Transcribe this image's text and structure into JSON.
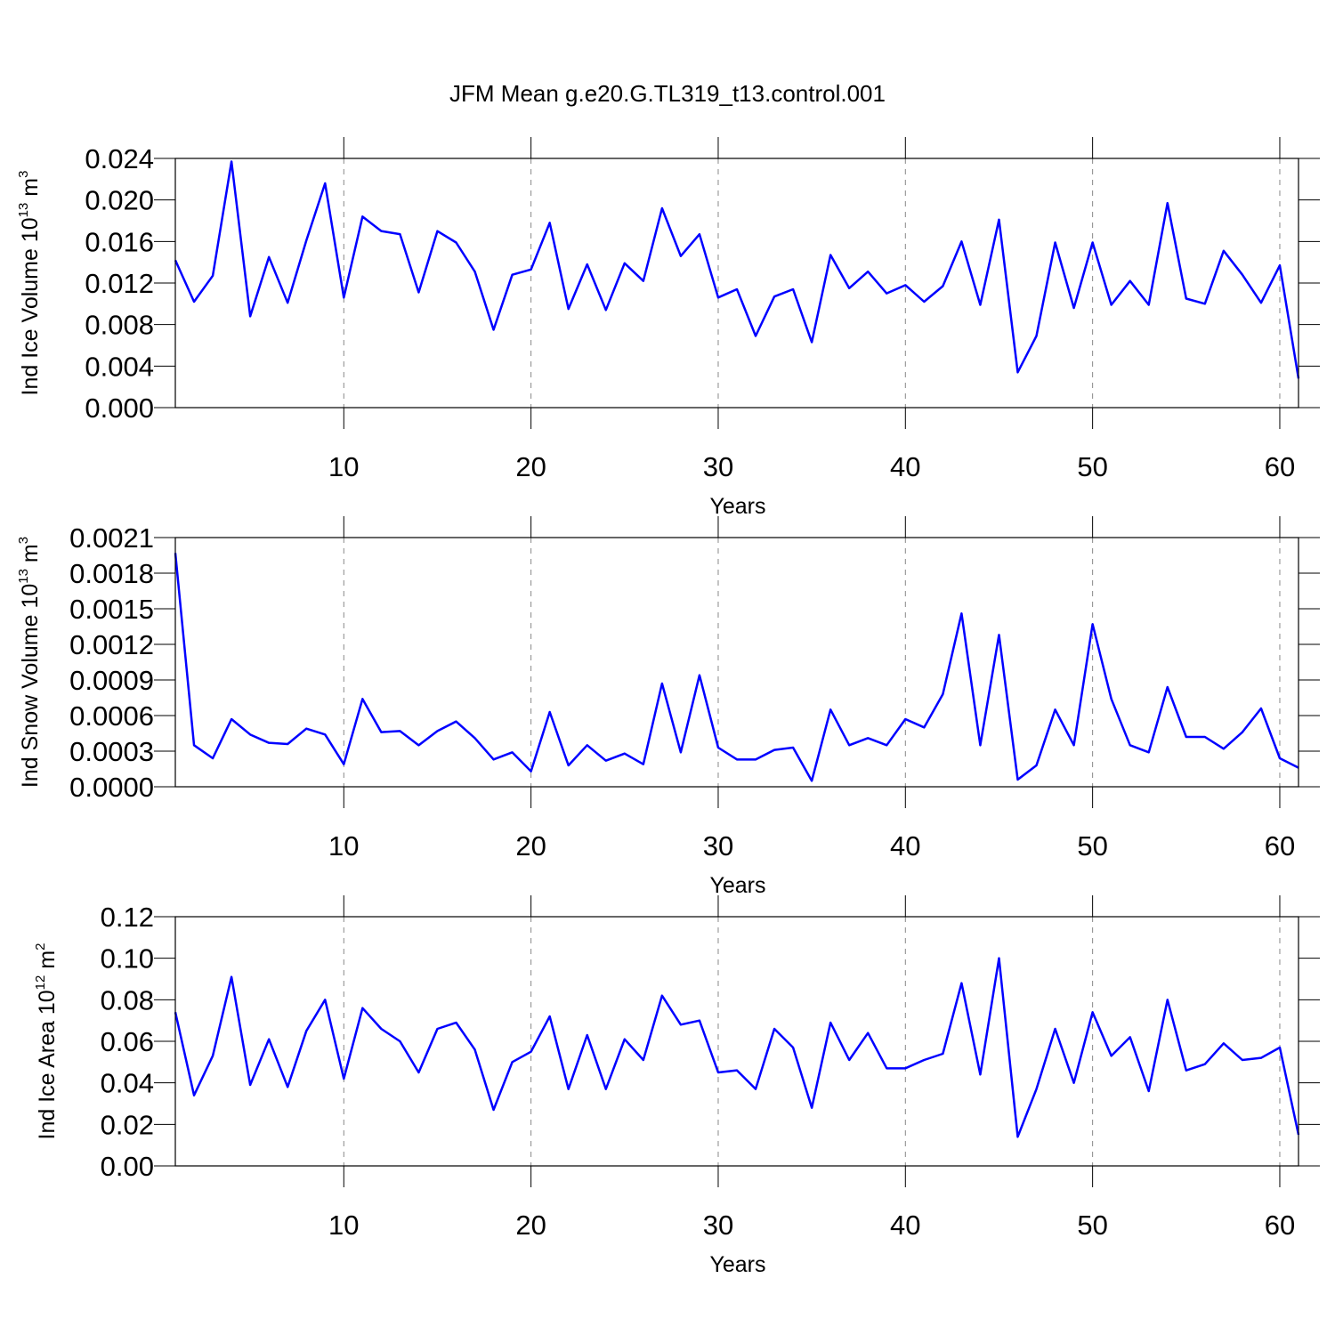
{
  "title": "JFM Mean g.e20.G.TL319_t13.control.001",
  "chart_data": [
    {
      "type": "line",
      "ylabel": [
        "Ind Ice Volume 10",
        "13",
        " m",
        "3"
      ],
      "xlabel": "Years",
      "x": [
        1,
        2,
        3,
        4,
        5,
        6,
        7,
        8,
        9,
        10,
        11,
        12,
        13,
        14,
        15,
        16,
        17,
        18,
        19,
        20,
        21,
        22,
        23,
        24,
        25,
        26,
        27,
        28,
        29,
        30,
        31,
        32,
        33,
        34,
        35,
        36,
        37,
        38,
        39,
        40,
        41,
        42,
        43,
        44,
        45,
        46,
        47,
        48,
        49,
        50,
        51,
        52,
        53,
        54,
        55,
        56,
        57,
        58,
        59,
        60,
        61
      ],
      "series": [
        {
          "color": "#0000ff",
          "values": [
            0.0142,
            0.0102,
            0.0127,
            0.0237,
            0.0088,
            0.0145,
            0.0101,
            0.0161,
            0.0216,
            0.0106,
            0.0184,
            0.017,
            0.0167,
            0.0111,
            0.017,
            0.0159,
            0.0131,
            0.0075,
            0.0128,
            0.0133,
            0.0178,
            0.0095,
            0.0138,
            0.0094,
            0.0139,
            0.0122,
            0.0192,
            0.0146,
            0.0167,
            0.0106,
            0.0114,
            0.0069,
            0.0107,
            0.0114,
            0.0063,
            0.0147,
            0.0115,
            0.0131,
            0.011,
            0.0118,
            0.0102,
            0.0117,
            0.016,
            0.0099,
            0.0181,
            0.0034,
            0.0069,
            0.0159,
            0.0096,
            0.0159,
            0.0099,
            0.0122,
            0.0099,
            0.0197,
            0.0105,
            0.01,
            0.0151,
            0.0128,
            0.0101,
            0.0137,
            0.0028
          ]
        }
      ],
      "xlim": [
        1,
        61
      ],
      "xticks": [
        10,
        20,
        30,
        40,
        50,
        60
      ],
      "ylim": [
        0,
        0.024
      ],
      "yticks": [
        {
          "value": 0,
          "label": "0.000"
        },
        0.004,
        0.008,
        0.012,
        0.016,
        {
          "value": 0.02,
          "label": "0.020"
        },
        0.024
      ],
      "xgrid": true
    },
    {
      "type": "line",
      "ylabel": [
        "Ind Snow Volume 10",
        "13",
        " m",
        "3"
      ],
      "xlabel": "Years",
      "x": [
        1,
        2,
        3,
        4,
        5,
        6,
        7,
        8,
        9,
        10,
        11,
        12,
        13,
        14,
        15,
        16,
        17,
        18,
        19,
        20,
        21,
        22,
        23,
        24,
        25,
        26,
        27,
        28,
        29,
        30,
        31,
        32,
        33,
        34,
        35,
        36,
        37,
        38,
        39,
        40,
        41,
        42,
        43,
        44,
        45,
        46,
        47,
        48,
        49,
        50,
        51,
        52,
        53,
        54,
        55,
        56,
        57,
        58,
        59,
        60,
        61
      ],
      "series": [
        {
          "color": "#0000ff",
          "values": [
            0.00197,
            0.00035,
            0.00024,
            0.00057,
            0.00044,
            0.00037,
            0.00036,
            0.00049,
            0.00044,
            0.00019,
            0.00074,
            0.00046,
            0.00047,
            0.00035,
            0.00047,
            0.00055,
            0.00041,
            0.00023,
            0.00029,
            0.00013,
            0.00063,
            0.00018,
            0.00035,
            0.00022,
            0.00028,
            0.00019,
            0.00087,
            0.00029,
            0.00094,
            0.00033,
            0.00023,
            0.00023,
            0.00031,
            0.00033,
            5e-05,
            0.00065,
            0.00035,
            0.00041,
            0.00035,
            0.00057,
            0.0005,
            0.00078,
            0.00146,
            0.00035,
            0.00128,
            6e-05,
            0.00018,
            0.00065,
            0.00035,
            0.00137,
            0.00074,
            0.00035,
            0.00029,
            0.00084,
            0.00042,
            0.00042,
            0.00032,
            0.00046,
            0.00066,
            0.00024,
            0.00016
          ]
        }
      ],
      "xlim": [
        1,
        61
      ],
      "xticks": [
        10,
        20,
        30,
        40,
        50,
        60
      ],
      "ylim": [
        0,
        0.0021
      ],
      "yticks": [
        {
          "value": 0,
          "label": "0.0000"
        },
        0.0003,
        0.0006,
        0.0009,
        0.0012,
        0.0015,
        0.0018,
        0.0021
      ],
      "xgrid": true
    },
    {
      "type": "line",
      "ylabel": [
        "Ind Ice Area 10",
        "12",
        " m",
        "2"
      ],
      "xlabel": "Years",
      "x": [
        1,
        2,
        3,
        4,
        5,
        6,
        7,
        8,
        9,
        10,
        11,
        12,
        13,
        14,
        15,
        16,
        17,
        18,
        19,
        20,
        21,
        22,
        23,
        24,
        25,
        26,
        27,
        28,
        29,
        30,
        31,
        32,
        33,
        34,
        35,
        36,
        37,
        38,
        39,
        40,
        41,
        42,
        43,
        44,
        45,
        46,
        47,
        48,
        49,
        50,
        51,
        52,
        53,
        54,
        55,
        56,
        57,
        58,
        59,
        60,
        61
      ],
      "series": [
        {
          "color": "#0000ff",
          "values": [
            0.074,
            0.034,
            0.053,
            0.091,
            0.039,
            0.061,
            0.038,
            0.065,
            0.08,
            0.042,
            0.076,
            0.066,
            0.06,
            0.045,
            0.066,
            0.069,
            0.056,
            0.027,
            0.05,
            0.055,
            0.072,
            0.037,
            0.063,
            0.037,
            0.061,
            0.051,
            0.082,
            0.068,
            0.07,
            0.045,
            0.046,
            0.037,
            0.066,
            0.057,
            0.028,
            0.069,
            0.051,
            0.064,
            0.047,
            0.047,
            0.051,
            0.054,
            0.088,
            0.044,
            0.1,
            0.014,
            0.037,
            0.066,
            0.04,
            0.074,
            0.053,
            0.062,
            0.036,
            0.08,
            0.046,
            0.049,
            0.059,
            0.051,
            0.052,
            0.057,
            0.015
          ]
        }
      ],
      "xlim": [
        1,
        61
      ],
      "xticks": [
        10,
        20,
        30,
        40,
        50,
        60
      ],
      "ylim": [
        0,
        0.12
      ],
      "yticks": [
        {
          "value": 0,
          "label": "0.00"
        },
        0.02,
        0.04,
        0.06,
        0.08,
        {
          "value": 0.1,
          "label": "0.10"
        },
        0.12
      ],
      "xgrid": true
    }
  ]
}
